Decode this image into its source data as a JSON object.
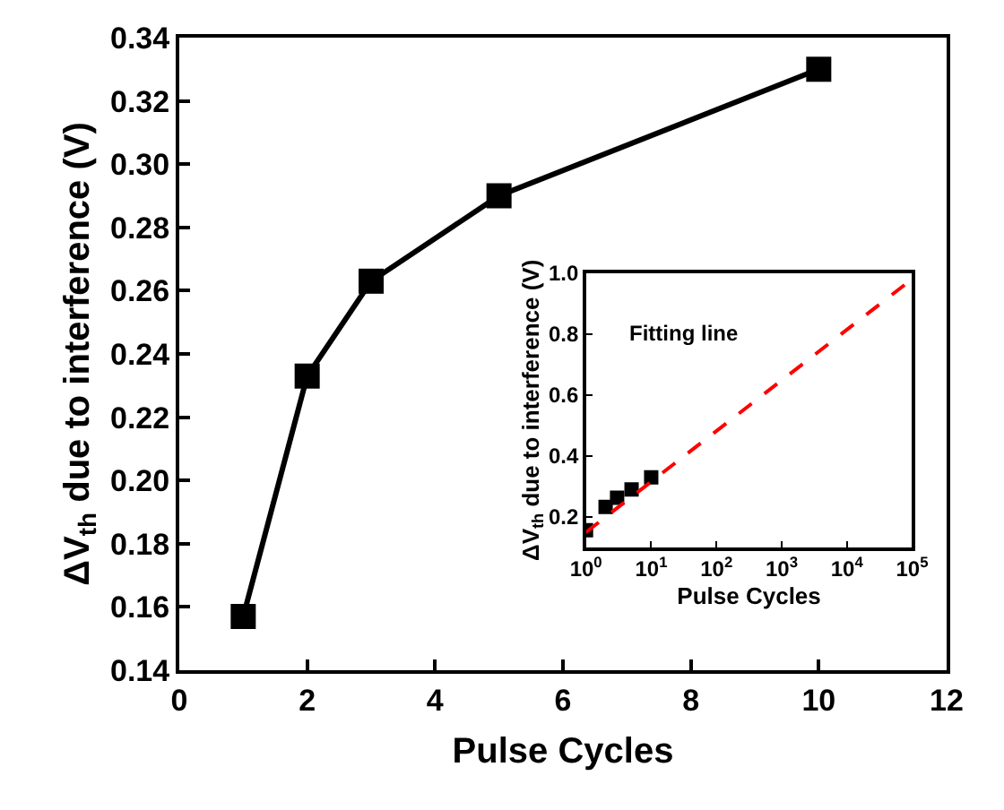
{
  "chart_data": [
    {
      "type": "line",
      "xlabel": "Pulse Cycles",
      "ylabel": "ΔV$_{th}$ due to interference (V)",
      "marker": "square",
      "line_style": "solid",
      "x": [
        1,
        2,
        3,
        5,
        10
      ],
      "series": [
        {
          "color": "#000000",
          "values": [
            0.157,
            0.233,
            0.263,
            0.29,
            0.33
          ]
        }
      ],
      "xlim": [
        0,
        12
      ],
      "xticks": [
        0,
        2,
        4,
        6,
        8,
        10,
        12
      ],
      "ylim": [
        0.14,
        0.34
      ],
      "yticks": [
        0.14,
        0.16,
        0.18,
        {
          "value": 0.2,
          "label": "0.20"
        },
        0.22,
        0.24,
        0.26,
        0.28,
        {
          "value": 0.3,
          "label": "0.30"
        },
        0.32,
        0.34
      ]
    },
    {
      "type": "scatter",
      "xlabel": "Pulse Cycles",
      "ylabel": "ΔV$_{th}$ due to interference (V)",
      "log": "x",
      "marker": "square",
      "annotations": [
        "Fitting line"
      ],
      "series": [
        {
          "color": "#000000",
          "x": [
            1,
            2,
            3,
            5,
            10
          ],
          "values": [
            0.157,
            0.233,
            0.263,
            0.29,
            0.33
          ]
        },
        {
          "type": "line",
          "line_style": "dashed",
          "marker": "none",
          "color": "#ff0000",
          "x": [
            1,
            100000
          ],
          "values": [
            0.15,
            0.98
          ]
        }
      ],
      "xlim": [
        1,
        100000
      ],
      "xticks": [
        {
          "value": 1,
          "label": "10$^{0}$"
        },
        {
          "value": 10,
          "label": "10$^{1}$"
        },
        {
          "value": 100,
          "label": "10$^{2}$"
        },
        {
          "value": 1000,
          "label": "10$^{3}$"
        },
        {
          "value": 10000,
          "label": "10$^{4}$"
        },
        {
          "value": 100000,
          "label": "10$^{5}$"
        }
      ],
      "ylim": [
        0.1,
        1.0
      ],
      "yticks": [
        0.2,
        0.4,
        0.6,
        0.8,
        {
          "value": 1.0,
          "label": "1.0"
        }
      ]
    }
  ]
}
